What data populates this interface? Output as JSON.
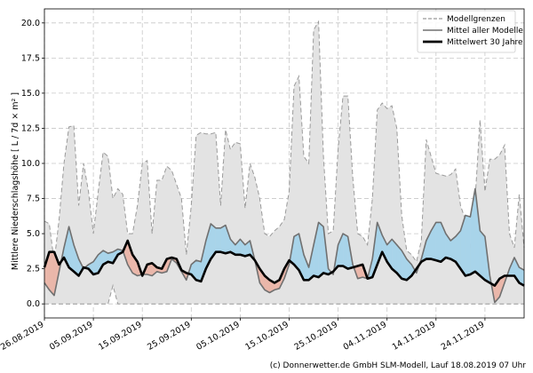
{
  "chart_data": {
    "type": "area",
    "xlabel": "",
    "ylabel": "Mittlere Niederschlagshöhe [ L / 7d × m² ]",
    "ylim": [
      -1.0,
      21.0
    ],
    "yticks": [
      "0.0",
      "2.5",
      "5.0",
      "7.5",
      "10.0",
      "12.5",
      "15.0",
      "17.5",
      "20.0"
    ],
    "ytick_values": [
      0,
      2.5,
      5,
      7.5,
      10,
      12.5,
      15,
      17.5,
      20
    ],
    "xtick_labels": [
      "26.08.2019",
      "05.09.2019",
      "15.09.2019",
      "25.09.2019",
      "05.10.2019",
      "15.10.2019",
      "25.10.2019",
      "04.11.2019",
      "14.11.2019",
      "24.11.2019"
    ],
    "xtick_days": [
      0,
      10,
      20,
      30,
      40,
      50,
      60,
      70,
      80,
      90
    ],
    "xlim_days": [
      0,
      98
    ],
    "grid": true,
    "legend_position": "top-right",
    "legend": [
      "Modellgrenzen",
      "Mittel aller Modelle",
      "Mittelwert 30 Jahre"
    ],
    "colors": {
      "band_fill": "#e3e3e3",
      "band_line": "#9a9a9a",
      "model_mean": "#707070",
      "climate_mean": "#000000",
      "above_climate": "#a8d4ea",
      "below_climate": "#eab7aa",
      "grid": "#c8c8c8"
    },
    "series": [
      {
        "name": "Modellgrenzen",
        "role": "band",
        "x": [
          0,
          1,
          2,
          3,
          4,
          5,
          6,
          7,
          8,
          9,
          10,
          11,
          12,
          13,
          14,
          15,
          16,
          17,
          18,
          19,
          20,
          21,
          22,
          23,
          24,
          25,
          26,
          27,
          28,
          29,
          30,
          31,
          32,
          33,
          34,
          35,
          36,
          37,
          38,
          39,
          40,
          41,
          42,
          43,
          44,
          45,
          46,
          47,
          48,
          49,
          50,
          51,
          52,
          53,
          54,
          55,
          56,
          57,
          58,
          59,
          60,
          61,
          62,
          63,
          64,
          65,
          66,
          67,
          68,
          69,
          70,
          71,
          72,
          73,
          74,
          75,
          76,
          77,
          78,
          79,
          80,
          81,
          82,
          83,
          84,
          85,
          86,
          87,
          88,
          89,
          90,
          91,
          92,
          93,
          94,
          95,
          96,
          97,
          98
        ],
        "upper": [
          5.9,
          5.7,
          3.0,
          6.0,
          10.0,
          12.6,
          12.7,
          7.0,
          10.0,
          8.0,
          5.0,
          8.0,
          10.8,
          10.5,
          7.5,
          8.2,
          7.8,
          5.0,
          5.0,
          7.0,
          10.0,
          10.2,
          5.0,
          8.8,
          8.8,
          9.8,
          9.5,
          8.5,
          7.5,
          3.5,
          7.0,
          12.0,
          12.2,
          12.1,
          12.1,
          12.2,
          7.0,
          12.4,
          11.0,
          11.5,
          11.4,
          6.8,
          10.0,
          9.0,
          7.5,
          5.0,
          4.8,
          5.2,
          5.5,
          6.0,
          8.0,
          15.5,
          16.2,
          10.5,
          10.0,
          19.5,
          20.1,
          10.5,
          5.0,
          5.2,
          11.0,
          14.8,
          14.8,
          9.0,
          5.0,
          4.8,
          4.2,
          7.5,
          13.8,
          14.3,
          13.9,
          14.1,
          12.5,
          6.3,
          3.8,
          3.5,
          3.0,
          4.5,
          11.7,
          10.5,
          9.3,
          9.2,
          9.1,
          9.2,
          9.6,
          7.0,
          6.0,
          4.0,
          7.5,
          13.1,
          8.0,
          10.3,
          10.3,
          10.6,
          11.3,
          5.0,
          4.0,
          7.8,
          4.0
        ],
        "lower": [
          0,
          0,
          0,
          0,
          0,
          0,
          0,
          0,
          0,
          0,
          0,
          0,
          0,
          0,
          1.3,
          0,
          0,
          0,
          0,
          0,
          0,
          0,
          0,
          0,
          0,
          0,
          0,
          0,
          0,
          0,
          0,
          0,
          0,
          0,
          0,
          0,
          0,
          0,
          0,
          0,
          0,
          0,
          0,
          0,
          0,
          0,
          0,
          0,
          0,
          0,
          0,
          0,
          0,
          0,
          0,
          0,
          0,
          0,
          0,
          0,
          0,
          0,
          0,
          0,
          0,
          0,
          0,
          0,
          0,
          0,
          0,
          0,
          0,
          0,
          0,
          0,
          0,
          0,
          0,
          0,
          0,
          0,
          0,
          0,
          0,
          0,
          0,
          0,
          0,
          0,
          0,
          0,
          0,
          0,
          0,
          0,
          0,
          0,
          0
        ]
      },
      {
        "name": "Mittel aller Modelle",
        "x": [
          0,
          1,
          2,
          3,
          4,
          5,
          6,
          7,
          8,
          9,
          10,
          11,
          12,
          13,
          14,
          15,
          16,
          17,
          18,
          19,
          20,
          21,
          22,
          23,
          24,
          25,
          26,
          27,
          28,
          29,
          30,
          31,
          32,
          33,
          34,
          35,
          36,
          37,
          38,
          39,
          40,
          41,
          42,
          43,
          44,
          45,
          46,
          47,
          48,
          49,
          50,
          51,
          52,
          53,
          54,
          55,
          56,
          57,
          58,
          59,
          60,
          61,
          62,
          63,
          64,
          65,
          66,
          67,
          68,
          69,
          70,
          71,
          72,
          73,
          74,
          75,
          76,
          77,
          78,
          79,
          80,
          81,
          82,
          83,
          84,
          85,
          86,
          87,
          88,
          89,
          90,
          91,
          92,
          93,
          94,
          95,
          96,
          97,
          98
        ],
        "values": [
          1.5,
          1.0,
          0.6,
          2.3,
          4.0,
          5.5,
          4.2,
          3.2,
          2.5,
          2.8,
          3.0,
          3.5,
          3.8,
          3.6,
          3.7,
          3.9,
          3.8,
          2.8,
          2.2,
          2.0,
          2.1,
          2.1,
          2.0,
          2.3,
          2.2,
          2.3,
          3.2,
          2.9,
          2.3,
          1.7,
          2.8,
          3.1,
          3.0,
          4.5,
          5.7,
          5.4,
          5.4,
          5.6,
          4.6,
          4.2,
          4.6,
          4.2,
          4.5,
          3.1,
          1.5,
          1.0,
          0.8,
          1.0,
          1.1,
          1.8,
          2.8,
          4.8,
          5.0,
          3.5,
          2.6,
          4.2,
          5.8,
          5.5,
          2.5,
          2.1,
          4.2,
          5.0,
          4.8,
          2.8,
          1.8,
          1.9,
          1.8,
          3.2,
          5.8,
          4.9,
          4.2,
          4.6,
          4.2,
          3.8,
          3.2,
          2.8,
          2.2,
          3.2,
          4.5,
          5.2,
          5.8,
          5.8,
          5.0,
          4.5,
          4.8,
          5.2,
          6.3,
          6.2,
          8.2,
          5.2,
          4.8,
          2.0,
          0.1,
          0.5,
          1.5,
          2.5,
          3.3,
          2.6,
          2.4
        ]
      },
      {
        "name": "Mittelwert 30 Jahre",
        "x": [
          0,
          1,
          2,
          3,
          4,
          5,
          6,
          7,
          8,
          9,
          10,
          11,
          12,
          13,
          14,
          15,
          16,
          17,
          18,
          19,
          20,
          21,
          22,
          23,
          24,
          25,
          26,
          27,
          28,
          29,
          30,
          31,
          32,
          33,
          34,
          35,
          36,
          37,
          38,
          39,
          40,
          41,
          42,
          43,
          44,
          45,
          46,
          47,
          48,
          49,
          50,
          51,
          52,
          53,
          54,
          55,
          56,
          57,
          58,
          59,
          60,
          61,
          62,
          63,
          64,
          65,
          66,
          67,
          68,
          69,
          70,
          71,
          72,
          73,
          74,
          75,
          76,
          77,
          78,
          79,
          80,
          81,
          82,
          83,
          84,
          85,
          86,
          87,
          88,
          89,
          90,
          91,
          92,
          93,
          94,
          95,
          96,
          97,
          98
        ],
        "values": [
          2.6,
          3.7,
          3.7,
          2.8,
          3.3,
          2.6,
          2.3,
          2.0,
          2.6,
          2.5,
          2.1,
          2.2,
          2.8,
          3.0,
          2.9,
          3.5,
          3.7,
          4.5,
          3.5,
          3.0,
          2.0,
          2.8,
          2.9,
          2.6,
          2.5,
          3.2,
          3.3,
          3.2,
          2.4,
          2.2,
          2.1,
          1.7,
          1.6,
          2.5,
          3.2,
          3.7,
          3.7,
          3.6,
          3.7,
          3.5,
          3.5,
          3.4,
          3.5,
          3.1,
          2.5,
          2.0,
          1.7,
          1.5,
          1.7,
          2.5,
          3.1,
          2.8,
          2.4,
          1.7,
          1.7,
          2.0,
          1.9,
          2.2,
          2.1,
          2.3,
          2.7,
          2.7,
          2.5,
          2.6,
          2.7,
          2.8,
          1.8,
          1.9,
          2.8,
          3.7,
          3.0,
          2.5,
          2.2,
          1.8,
          1.7,
          2.0,
          2.5,
          3.0,
          3.2,
          3.2,
          3.1,
          3.0,
          3.3,
          3.2,
          3.0,
          2.5,
          2.0,
          2.1,
          2.3,
          2.0,
          1.7,
          1.5,
          1.3,
          1.8,
          2.0,
          2.0,
          2.0,
          1.5,
          1.3
        ]
      }
    ],
    "credit": "(c) Donnerwetter.de GmbH SLM-Modell, Lauf 18.08.2019 07 Uhr"
  }
}
